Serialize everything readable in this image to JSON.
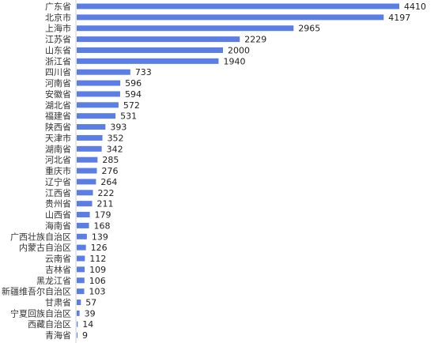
{
  "chart_data": {
    "type": "bar",
    "orientation": "horizontal",
    "categories": [
      "广东省",
      "北京市",
      "上海市",
      "江苏省",
      "山东省",
      "浙江省",
      "四川省",
      "河南省",
      "安徽省",
      "湖北省",
      "福建省",
      "陕西省",
      "天津市",
      "湖南省",
      "河北省",
      "重庆市",
      "辽宁省",
      "江西省",
      "贵州省",
      "山西省",
      "海南省",
      "广西壮族自治区",
      "内蒙古自治区",
      "云南省",
      "吉林省",
      "黑龙江省",
      "新疆维吾尔自治区",
      "甘肃省",
      "宁夏回族自治区",
      "西藏自治区",
      "青海省"
    ],
    "values": [
      4410,
      4197,
      2965,
      2229,
      2000,
      1940,
      733,
      596,
      594,
      572,
      531,
      393,
      352,
      342,
      285,
      276,
      264,
      222,
      211,
      179,
      168,
      139,
      126,
      112,
      109,
      106,
      103,
      57,
      39,
      14,
      9
    ],
    "title": "",
    "xlabel": "",
    "ylabel": "",
    "xlim": [
      0,
      4410
    ],
    "grid": false,
    "legend": "none",
    "bar_color": "#5b7ee5"
  }
}
